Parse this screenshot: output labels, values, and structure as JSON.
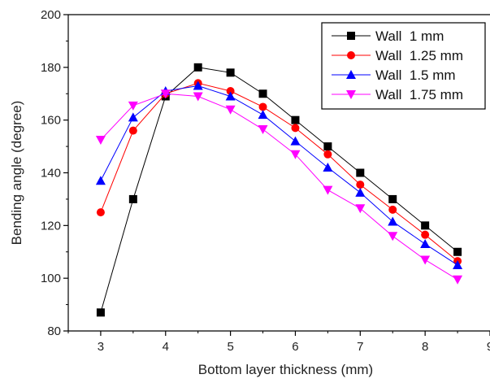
{
  "chart_data": {
    "type": "line",
    "xlabel": "Bottom layer thickness (mm)",
    "ylabel": "Bending angle (degree)",
    "xlim": [
      2.5,
      9
    ],
    "ylim": [
      80,
      200
    ],
    "x_ticks": [
      3,
      4,
      5,
      6,
      7,
      8,
      9
    ],
    "x_tick_labels": [
      "3",
      "4",
      "5",
      "6",
      "7",
      "8",
      "9"
    ],
    "y_ticks": [
      80,
      100,
      120,
      140,
      160,
      180,
      200
    ],
    "y_tick_labels": [
      "80",
      "100",
      "120",
      "140",
      "160",
      "180",
      "200"
    ],
    "grid": false,
    "legend_position": "top-right",
    "x": [
      3,
      3.5,
      4,
      4.5,
      5,
      5.5,
      6,
      6.5,
      7,
      7.5,
      8,
      8.5
    ],
    "series": [
      {
        "name": "Wall  1 mm",
        "color": "#000000",
        "marker": "square",
        "values": [
          87,
          130,
          169,
          180,
          178,
          170,
          160,
          150,
          140,
          130,
          120,
          110
        ]
      },
      {
        "name": "Wall  1.25 mm",
        "color": "#ff0000",
        "marker": "circle",
        "values": [
          125,
          156,
          170,
          174,
          171,
          165,
          157,
          147,
          135.5,
          126,
          116.5,
          106.5
        ]
      },
      {
        "name": "Wall  1.5 mm",
        "color": "#0000ff",
        "marker": "triangle-up",
        "values": [
          137,
          161,
          171,
          173,
          169,
          162,
          152,
          142,
          132.5,
          121.5,
          113,
          105
        ]
      },
      {
        "name": "Wall  1.75 mm",
        "color": "#ff00ff",
        "marker": "triangle-down",
        "values": [
          152.5,
          165.5,
          170,
          169,
          164,
          156.5,
          147,
          133.5,
          126.5,
          116,
          107,
          99.5
        ]
      }
    ]
  }
}
